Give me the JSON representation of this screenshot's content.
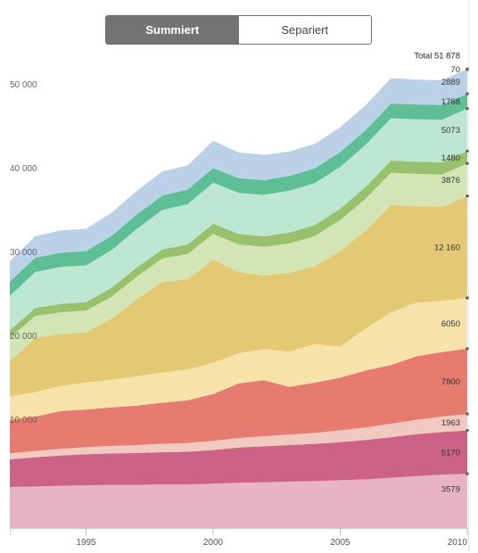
{
  "toggle": {
    "active_label": "Summiert",
    "inactive_label": "Separiert"
  },
  "chart_data": {
    "type": "area",
    "stacked": true,
    "x": [
      1992,
      1993,
      1994,
      1995,
      1996,
      1997,
      1998,
      1999,
      2000,
      2001,
      2002,
      2003,
      2004,
      2005,
      2006,
      2007,
      2008,
      2009,
      2010
    ],
    "x_tick_labels": [
      "1995",
      "2000",
      "2005",
      "2010"
    ],
    "x_ticks": [
      1995,
      2000,
      2005,
      2010
    ],
    "y_tick_labels": [
      "10 000",
      "20 000",
      "30 000",
      "40 000",
      "50 000"
    ],
    "y_ticks": [
      10000,
      20000,
      30000,
      40000,
      50000
    ],
    "ylim": [
      -2900,
      55000
    ],
    "grid": false,
    "total_label": "Total 51 878",
    "series": [
      {
        "color": "#e8b4c4",
        "end_label": "3579",
        "values": [
          2000,
          2050,
          2150,
          2200,
          2250,
          2250,
          2300,
          2300,
          2400,
          2500,
          2550,
          2650,
          2700,
          2800,
          2900,
          3100,
          3300,
          3450,
          3579
        ]
      },
      {
        "color": "#cc6285",
        "end_label": "5170",
        "values": [
          3300,
          3500,
          3600,
          3700,
          3750,
          3800,
          3850,
          3900,
          4000,
          4200,
          4300,
          4350,
          4450,
          4550,
          4700,
          4850,
          5000,
          5100,
          5170
        ]
      },
      {
        "color": "#f2c9c0",
        "end_label": "1963",
        "values": [
          700,
          750,
          800,
          850,
          900,
          950,
          1000,
          1050,
          1100,
          1150,
          1200,
          1250,
          1300,
          1400,
          1500,
          1600,
          1700,
          1850,
          1963
        ]
      },
      {
        "color": "#e67b70",
        "end_label": "7800",
        "values": [
          4000,
          4100,
          4500,
          4500,
          4600,
          4700,
          4900,
          5100,
          5600,
          6500,
          6700,
          5700,
          6000,
          6300,
          6800,
          7000,
          7600,
          7700,
          7800
        ]
      },
      {
        "color": "#f7e3a9",
        "end_label": "6050",
        "values": [
          2800,
          2900,
          3000,
          3200,
          3300,
          3500,
          3600,
          3650,
          3700,
          3600,
          3700,
          4200,
          4600,
          3700,
          5000,
          6300,
          6400,
          6100,
          6050
        ]
      },
      {
        "color": "#e3c974",
        "end_label": "12 160",
        "values": [
          4200,
          6500,
          6200,
          6000,
          7300,
          9200,
          10800,
          10800,
          12300,
          9700,
          8800,
          9400,
          9300,
          11400,
          11700,
          12800,
          11500,
          11200,
          12160
        ]
      },
      {
        "color": "#d3e4b5",
        "end_label": "3876",
        "values": [
          2800,
          2600,
          2600,
          2600,
          2600,
          2700,
          2800,
          3000,
          3100,
          3300,
          3400,
          3500,
          3600,
          3700,
          3800,
          3850,
          3860,
          3870,
          3876
        ]
      },
      {
        "color": "#98c06d",
        "end_label": "1480",
        "values": [
          900,
          950,
          1000,
          1000,
          1050,
          1100,
          1100,
          1150,
          1200,
          1250,
          1250,
          1300,
          1300,
          1350,
          1400,
          1450,
          1460,
          1470,
          1480
        ]
      },
      {
        "color": "#bde6d3",
        "end_label": "5073",
        "values": [
          4100,
          4300,
          4400,
          4400,
          4500,
          4600,
          4700,
          4800,
          4900,
          4900,
          4950,
          5000,
          5000,
          5000,
          5030,
          5050,
          5060,
          5070,
          5073
        ]
      },
      {
        "color": "#5ebf97",
        "end_label": "1768",
        "values": [
          1700,
          1700,
          1700,
          1700,
          1700,
          1720,
          1730,
          1740,
          1750,
          1750,
          1755,
          1760,
          1760,
          1760,
          1765,
          1765,
          1766,
          1767,
          1768
        ]
      },
      {
        "color": "#bad1e7",
        "end_label": "2889",
        "values": [
          2400,
          2500,
          2600,
          2600,
          2700,
          2750,
          2800,
          2800,
          3200,
          3000,
          2950,
          2850,
          2850,
          2900,
          2900,
          2950,
          2900,
          2880,
          2889
        ]
      },
      {
        "color": "#aec7e2",
        "end_label": "70",
        "values": [
          60,
          60,
          60,
          60,
          62,
          62,
          64,
          64,
          65,
          65,
          66,
          66,
          67,
          67,
          68,
          68,
          69,
          69,
          70
        ]
      }
    ]
  }
}
